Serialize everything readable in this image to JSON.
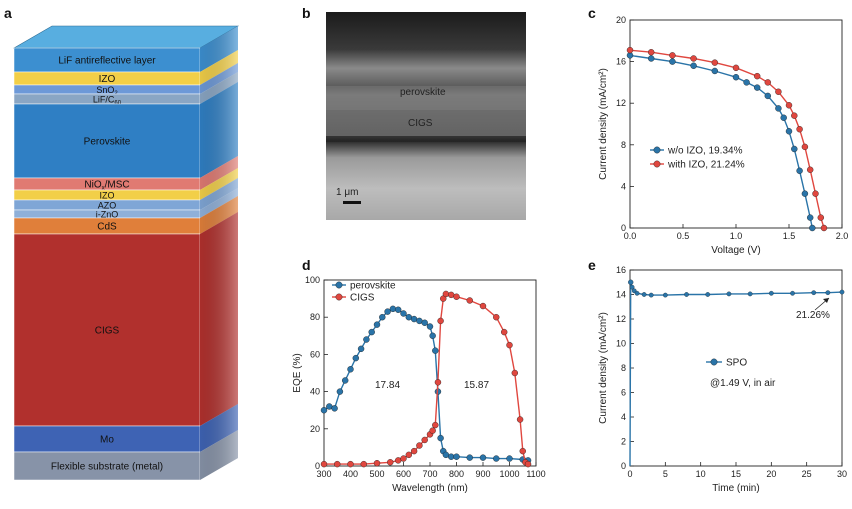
{
  "panels": {
    "a": {
      "label": "a",
      "layers": [
        {
          "name": "LiF antireflective layer",
          "color": "#3c8fd0"
        },
        {
          "name": "IZO",
          "color": "#f2cf48"
        },
        {
          "name": "SnO2",
          "color": "#6d99d8"
        },
        {
          "name": "LiF/C60",
          "color": "#8aa6c4"
        },
        {
          "name": "Perovskite",
          "color": "#2f7fc4"
        },
        {
          "name": "NiOx/MSC",
          "color": "#e07a72"
        },
        {
          "name": "IZO",
          "color": "#f2cf48"
        },
        {
          "name": "AZO",
          "color": "#7fa6d6"
        },
        {
          "name": "i-ZnO",
          "color": "#8fb0d9"
        },
        {
          "name": "CdS",
          "color": "#e07f3a"
        },
        {
          "name": "CIGS",
          "color": "#b1302d"
        },
        {
          "name": "Mo",
          "color": "#3e63b4"
        },
        {
          "name": "Flexible substrate (metal)",
          "color": "#8793a8"
        }
      ]
    },
    "b": {
      "label": "b",
      "perovskite_label": "perovskite",
      "cigs_label": "CIGS",
      "scale_label": "1 μm"
    },
    "c": {
      "label": "c",
      "chart_data": {
        "type": "line",
        "xlabel": "Voltage (V)",
        "ylabel": "Current density (mA/cm²)",
        "xlim": [
          0,
          2.0
        ],
        "ylim": [
          0,
          20
        ],
        "xticks": [
          "0.0",
          "0.5",
          "1.0",
          "1.5",
          "2.0"
        ],
        "yticks": [
          "0",
          "4",
          "8",
          "12",
          "16",
          "20"
        ],
        "legend": "left",
        "series": [
          {
            "name": "w/o IZO, 19.34%",
            "color": "#2a74a8",
            "x": [
              0,
              0.2,
              0.4,
              0.6,
              0.8,
              1.0,
              1.1,
              1.2,
              1.3,
              1.4,
              1.45,
              1.5,
              1.55,
              1.6,
              1.65,
              1.7,
              1.72
            ],
            "y": [
              16.6,
              16.3,
              16.0,
              15.6,
              15.1,
              14.5,
              14.0,
              13.5,
              12.7,
              11.5,
              10.6,
              9.3,
              7.6,
              5.5,
              3.3,
              1.0,
              0
            ]
          },
          {
            "name": "with IZO, 21.24%",
            "color": "#e0473f",
            "x": [
              0,
              0.2,
              0.4,
              0.6,
              0.8,
              1.0,
              1.2,
              1.3,
              1.4,
              1.5,
              1.55,
              1.6,
              1.65,
              1.7,
              1.75,
              1.8,
              1.83
            ],
            "y": [
              17.1,
              16.9,
              16.6,
              16.3,
              15.9,
              15.4,
              14.6,
              14.0,
              13.1,
              11.8,
              10.8,
              9.5,
              7.8,
              5.6,
              3.3,
              1.0,
              0
            ]
          }
        ]
      }
    },
    "d": {
      "label": "d",
      "chart_data": {
        "type": "line",
        "xlabel": "Wavelength (nm)",
        "ylabel": "EQE (%)",
        "xlim": [
          300,
          1100
        ],
        "ylim": [
          0,
          100
        ],
        "xticks": [
          "300",
          "400",
          "500",
          "600",
          "700",
          "800",
          "900",
          "1000",
          "1100"
        ],
        "yticks": [
          "0",
          "20",
          "40",
          "60",
          "80",
          "100"
        ],
        "legend": "top-left",
        "annotations": [
          "17.84",
          "15.87"
        ],
        "series": [
          {
            "name": "perovskite",
            "color": "#2a74a8",
            "x": [
              300,
              320,
              340,
              360,
              380,
              400,
              420,
              440,
              460,
              480,
              500,
              520,
              540,
              560,
              580,
              600,
              620,
              640,
              660,
              680,
              700,
              710,
              720,
              730,
              740,
              750,
              760,
              780,
              800,
              850,
              900,
              950,
              1000,
              1050,
              1070
            ],
            "y": [
              30,
              32,
              31,
              40,
              46,
              52,
              58,
              63,
              68,
              72,
              76,
              80,
              83,
              84.5,
              84,
              82,
              80,
              79,
              78,
              77,
              75,
              70,
              62,
              40,
              15,
              8,
              6,
              5,
              5,
              4.5,
              4.5,
              4,
              4,
              3.5,
              3
            ]
          },
          {
            "name": "CIGS",
            "color": "#e0473f",
            "x": [
              300,
              350,
              400,
              450,
              500,
              550,
              580,
              600,
              620,
              640,
              660,
              680,
              700,
              710,
              720,
              730,
              740,
              750,
              760,
              780,
              800,
              850,
              900,
              950,
              980,
              1000,
              1020,
              1040,
              1050,
              1060,
              1070
            ],
            "y": [
              1,
              1,
              1,
              1,
              1.5,
              2,
              3,
              4,
              6,
              8,
              11,
              14,
              17,
              19,
              22,
              45,
              78,
              90,
              92.5,
              92,
              91,
              89,
              86,
              80,
              72,
              65,
              50,
              25,
              8,
              2,
              1
            ]
          }
        ]
      }
    },
    "e": {
      "label": "e",
      "chart_data": {
        "type": "line",
        "xlabel": "Time (min)",
        "ylabel": "Current density (mA/cm²)",
        "xlim": [
          0,
          30
        ],
        "ylim": [
          0,
          16
        ],
        "xticks": [
          "0",
          "5",
          "10",
          "15",
          "20",
          "25",
          "30"
        ],
        "yticks": [
          "0",
          "2",
          "4",
          "6",
          "8",
          "10",
          "12",
          "14",
          "16"
        ],
        "legend": "center",
        "annotations": [
          "21.26%",
          "@1.49 V, in air"
        ],
        "series": [
          {
            "name": "SPO",
            "color": "#2a74a8",
            "x": [
              0,
              0.1,
              0.3,
              0.6,
              1,
              2,
              3,
              5,
              8,
              11,
              14,
              17,
              20,
              23,
              26,
              28,
              30
            ],
            "y": [
              0,
              15.0,
              14.6,
              14.3,
              14.1,
              14.0,
              13.95,
              13.95,
              14.0,
              14.0,
              14.05,
              14.05,
              14.1,
              14.1,
              14.15,
              14.15,
              14.2
            ]
          }
        ]
      }
    }
  }
}
